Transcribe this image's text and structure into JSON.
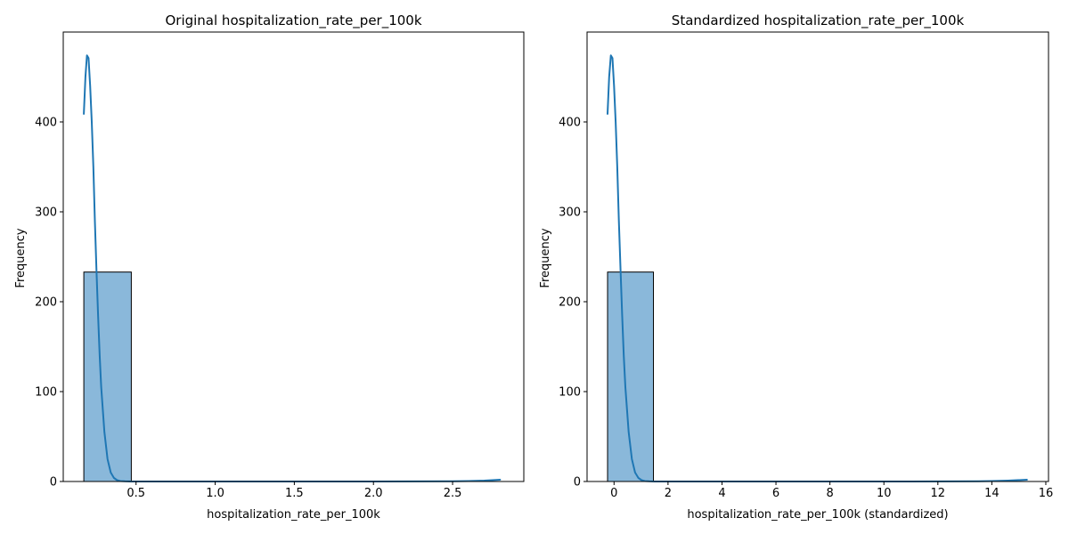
{
  "chart_data": [
    {
      "type": "bar",
      "title": "Original hospitalization_rate_per_100k",
      "xlabel": "hospitalization_rate_per_100k",
      "ylabel": "Frequency",
      "xlim": [
        0.04,
        2.95
      ],
      "ylim": [
        0,
        500
      ],
      "xticks": [
        0.5,
        1.0,
        1.5,
        2.0,
        2.5
      ],
      "xtick_labels": [
        "0.5",
        "1.0",
        "1.5",
        "2.0",
        "2.5"
      ],
      "yticks": [
        0,
        100,
        200,
        300,
        400
      ],
      "ytick_labels": [
        "0",
        "100",
        "200",
        "300",
        "400"
      ],
      "bars": [
        {
          "x0": 0.17,
          "x1": 0.47,
          "value": 233
        }
      ],
      "kde": {
        "x": [
          0.17,
          0.18,
          0.19,
          0.2,
          0.21,
          0.22,
          0.23,
          0.24,
          0.25,
          0.26,
          0.27,
          0.28,
          0.3,
          0.32,
          0.34,
          0.36,
          0.38,
          0.4,
          0.43,
          0.47,
          0.6,
          1.0,
          1.5,
          2.0,
          2.5,
          2.6,
          2.7,
          2.8
        ],
        "y": [
          409,
          450,
          474,
          471,
          440,
          400,
          350,
          290,
          235,
          185,
          140,
          105,
          55,
          25,
          10,
          4,
          1.5,
          0.5,
          0.2,
          0,
          0,
          0,
          0,
          0,
          0.2,
          0.5,
          1,
          2
        ]
      },
      "grid": false,
      "bar_color": "#8ab8da",
      "line_color": "#1f77b4"
    },
    {
      "type": "bar",
      "title": "Standardized hospitalization_rate_per_100k",
      "xlabel": "hospitalization_rate_per_100k (standardized)",
      "ylabel": "Frequency",
      "xlim": [
        -1.0,
        16.1
      ],
      "ylim": [
        0,
        500
      ],
      "xticks": [
        0,
        2,
        4,
        6,
        8,
        10,
        12,
        14,
        16
      ],
      "xtick_labels": [
        "0",
        "2",
        "4",
        "6",
        "8",
        "10",
        "12",
        "14",
        "16"
      ],
      "yticks": [
        0,
        100,
        200,
        300,
        400
      ],
      "ytick_labels": [
        "0",
        "100",
        "200",
        "300",
        "400"
      ],
      "bars": [
        {
          "x0": -0.24,
          "x1": 1.46,
          "value": 233
        }
      ],
      "kde": {
        "x": [
          -0.24,
          -0.18,
          -0.12,
          -0.06,
          0.0,
          0.06,
          0.12,
          0.18,
          0.24,
          0.3,
          0.36,
          0.42,
          0.54,
          0.66,
          0.78,
          0.9,
          1.02,
          1.14,
          1.3,
          1.5,
          2.5,
          5.0,
          8.0,
          11.0,
          13.5,
          14.0,
          14.6,
          15.3
        ],
        "y": [
          409,
          450,
          474,
          471,
          440,
          400,
          350,
          290,
          235,
          185,
          140,
          105,
          55,
          25,
          10,
          4,
          1.5,
          0.5,
          0.2,
          0,
          0,
          0,
          0,
          0,
          0.2,
          0.5,
          1,
          2
        ]
      },
      "grid": false,
      "bar_color": "#8ab8da",
      "line_color": "#1f77b4"
    }
  ]
}
